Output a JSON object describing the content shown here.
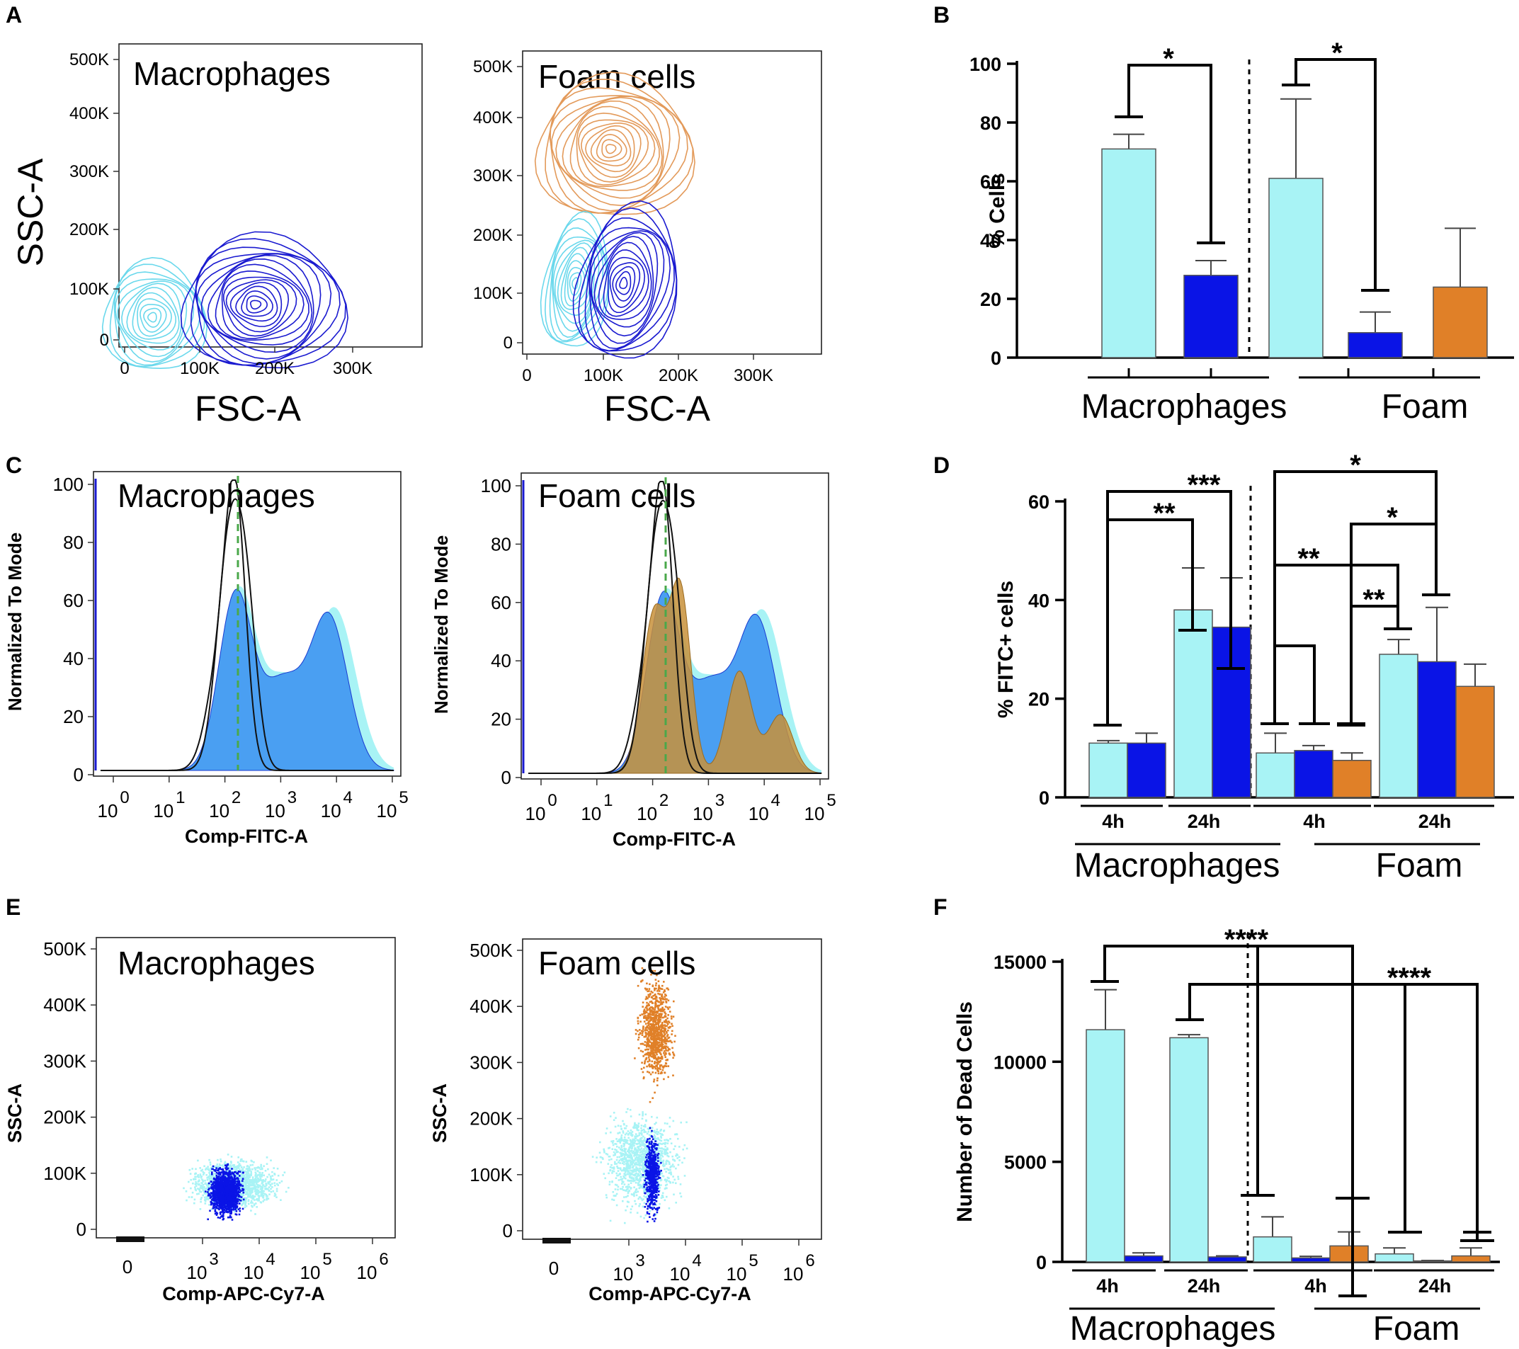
{
  "colors": {
    "macrophage_pop": "#a8f3f5",
    "dark_pop": "#0a14e6",
    "foam_pop": "#e08028",
    "contour_light": "#6ad8ec",
    "contour_dark": "#1a1ad0",
    "contour_orange": "#e39a5a",
    "hist_blue": "#4a9ff2",
    "hist_orange": "#c8903a",
    "gate_line": "#4aa84a"
  },
  "panels": {
    "A": {
      "letter": "A",
      "ylabel": "SSC-A",
      "xlabel": "FSC-A",
      "left_title": "Macrophages",
      "right_title": "Foam cells"
    },
    "B": {
      "letter": "B"
    },
    "C": {
      "letter": "C",
      "ylabel": "Normalized To Mode",
      "xlabel": "Comp-FITC-A",
      "left_title": "Macrophages",
      "right_title": "Foam cells"
    },
    "D": {
      "letter": "D"
    },
    "E": {
      "letter": "E",
      "ylabel": "SSC-A",
      "xlabel": "Comp-APC-Cy7-A",
      "left_title": "Macrophages",
      "right_title": "Foam cells"
    },
    "F": {
      "letter": "F"
    }
  },
  "flow_axes": {
    "A_left_y": [
      "500K",
      "400K",
      "300K",
      "200K",
      "100K",
      "0"
    ],
    "A_left_x": [
      "0",
      "100K",
      "200K",
      "300K"
    ],
    "A_right_y": [
      "500K",
      "400K",
      "300K",
      "200K",
      "100K",
      "0"
    ],
    "A_right_x": [
      "0",
      "100K",
      "200K",
      "300K"
    ],
    "C_y": [
      "100",
      "80",
      "60",
      "40",
      "20",
      "0"
    ],
    "C_x_base": [
      "10",
      "10",
      "10",
      "10",
      "10",
      "10"
    ],
    "C_x_exp": [
      "0",
      "1",
      "2",
      "3",
      "4",
      "5"
    ],
    "E_y": [
      "500K",
      "400K",
      "300K",
      "200K",
      "100K",
      "0"
    ],
    "E_x_zero": "0",
    "E_x_base": [
      "10",
      "10",
      "10",
      "10"
    ],
    "E_x_exp": [
      "3",
      "4",
      "5",
      "6"
    ]
  },
  "chart_data": [
    {
      "panel": "B",
      "type": "bar",
      "ylabel": "% Cells",
      "ylim": [
        0,
        100
      ],
      "yticks": [
        "0",
        "20",
        "40",
        "60",
        "80",
        "100"
      ],
      "groups": [
        "Macrophages",
        "Foam"
      ],
      "bars": [
        {
          "group": "Macrophages",
          "color": "light",
          "value": 71,
          "error": 5
        },
        {
          "group": "Macrophages",
          "color": "dark",
          "value": 28,
          "error": 5
        },
        {
          "group": "Foam",
          "color": "light",
          "value": 61,
          "error": 27
        },
        {
          "group": "Foam",
          "color": "dark",
          "value": 8.5,
          "error": 7
        },
        {
          "group": "Foam",
          "color": "orange",
          "value": 24,
          "error": 20
        }
      ],
      "significance": [
        "*",
        "*"
      ]
    },
    {
      "panel": "D",
      "type": "bar",
      "ylabel": "% FITC+ cells",
      "ylim": [
        0,
        60
      ],
      "yticks": [
        "0",
        "20",
        "40",
        "60"
      ],
      "groups": [
        "Macrophages",
        "Foam"
      ],
      "timepoints": [
        "4h",
        "24h",
        "4h",
        "24h"
      ],
      "bars": [
        {
          "group": "Macrophages",
          "time": "4h",
          "color": "light",
          "value": 11,
          "error": 0.5
        },
        {
          "group": "Macrophages",
          "time": "4h",
          "color": "dark",
          "value": 11,
          "error": 2
        },
        {
          "group": "Macrophages",
          "time": "24h",
          "color": "light",
          "value": 38,
          "error": 8.5
        },
        {
          "group": "Macrophages",
          "time": "24h",
          "color": "dark",
          "value": 34.5,
          "error": 10
        },
        {
          "group": "Foam",
          "time": "4h",
          "color": "light",
          "value": 9,
          "error": 4
        },
        {
          "group": "Foam",
          "time": "4h",
          "color": "dark",
          "value": 9.5,
          "error": 1
        },
        {
          "group": "Foam",
          "time": "4h",
          "color": "orange",
          "value": 7.5,
          "error": 1.5
        },
        {
          "group": "Foam",
          "time": "24h",
          "color": "light",
          "value": 29,
          "error": 3
        },
        {
          "group": "Foam",
          "time": "24h",
          "color": "dark",
          "value": 27.5,
          "error": 11
        },
        {
          "group": "Foam",
          "time": "24h",
          "color": "orange",
          "value": 22.5,
          "error": 4.5
        }
      ],
      "significance": [
        "***",
        "**",
        "*",
        "*",
        "**",
        "**"
      ]
    },
    {
      "panel": "F",
      "type": "bar",
      "ylabel": "Number of Dead Cells",
      "ylim": [
        0,
        15000
      ],
      "yticks": [
        "0",
        "5000",
        "10000",
        "15000"
      ],
      "groups": [
        "Macrophages",
        "Foam"
      ],
      "timepoints": [
        "4h",
        "24h",
        "4h",
        "24h"
      ],
      "bars": [
        {
          "group": "Macrophages",
          "time": "4h",
          "color": "light",
          "value": 11600,
          "error": 2000
        },
        {
          "group": "Macrophages",
          "time": "4h",
          "color": "dark",
          "value": 300,
          "error": 150
        },
        {
          "group": "Macrophages",
          "time": "24h",
          "color": "light",
          "value": 11200,
          "error": 150
        },
        {
          "group": "Macrophages",
          "time": "24h",
          "color": "dark",
          "value": 250,
          "error": 50
        },
        {
          "group": "Foam",
          "time": "4h",
          "color": "light",
          "value": 1250,
          "error": 1000
        },
        {
          "group": "Foam",
          "time": "4h",
          "color": "dark",
          "value": 200,
          "error": 80
        },
        {
          "group": "Foam",
          "time": "4h",
          "color": "orange",
          "value": 800,
          "error": 700
        },
        {
          "group": "Foam",
          "time": "24h",
          "color": "light",
          "value": 400,
          "error": 300
        },
        {
          "group": "Foam",
          "time": "24h",
          "color": "dark",
          "value": 50,
          "error": 20
        },
        {
          "group": "Foam",
          "time": "24h",
          "color": "orange",
          "value": 300,
          "error": 400
        }
      ],
      "significance": [
        "****",
        "****"
      ]
    }
  ]
}
